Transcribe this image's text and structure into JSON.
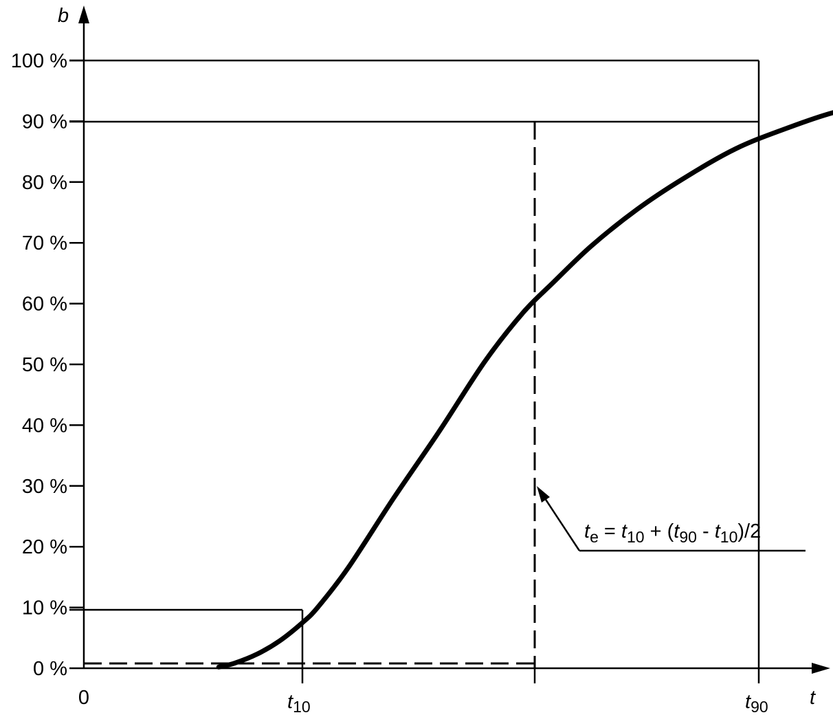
{
  "chart_data": {
    "type": "line",
    "ylabel": "b",
    "xlabel": "t",
    "y_ticks": [
      "0 %",
      "10 %",
      "20 %",
      "30 %",
      "40 %",
      "50 %",
      "60 %",
      "70 %",
      "80 %",
      "90 %",
      "100 %"
    ],
    "ylim": [
      0,
      100
    ],
    "x_tick_origin": "0",
    "x_marks": [
      {
        "name": "t10",
        "base": "t",
        "sub": "10"
      },
      {
        "name": "t90",
        "base": "t",
        "sub": "90"
      }
    ],
    "series": [
      {
        "x": [
          0.45,
          0.55,
          0.7,
          0.85,
          1.0,
          1.1,
          1.3,
          1.6,
          1.9,
          2.2,
          2.45,
          2.65,
          2.9,
          3.2,
          3.5,
          3.85,
          4.2,
          4.5,
          4.8,
          5.1
        ],
        "y": [
          0.2,
          0.8,
          2.3,
          4.5,
          7.5,
          10.0,
          16.5,
          28.0,
          39.0,
          50.5,
          58.5,
          63.5,
          69.5,
          75.5,
          80.5,
          85.5,
          89.0,
          91.5,
          93.0,
          95.0
        ]
      }
    ],
    "annotations": {
      "formula": {
        "lhs_base": "t",
        "lhs_sub": "e",
        "eq": " = ",
        "a_base": "t",
        "a_sub": "10",
        "plus": " + (",
        "b_base": "t",
        "b_sub": "90",
        "minus": " - ",
        "c_base": "t",
        "c_sub": "10",
        "tail": ")/2"
      }
    }
  }
}
